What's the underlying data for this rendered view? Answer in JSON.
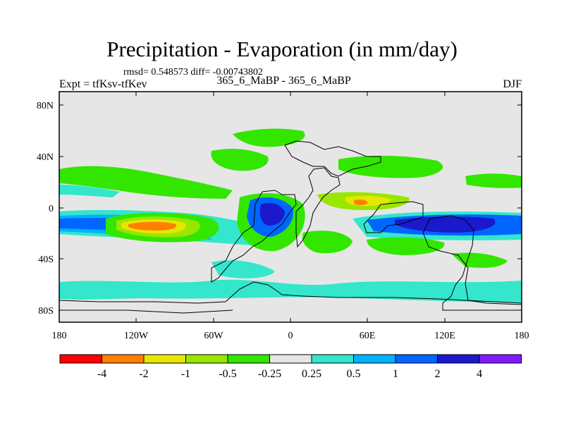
{
  "title": "Precipitation - Evaporation (in mm/day)",
  "stats": "rmsd= 0.548573 diff= -0.00743802",
  "expt": "Expt = tfKsv-tfKev",
  "case": "365_6_MaBP - 365_6_MaBP",
  "season": "DJF",
  "axes": {
    "x_ticks": [
      "180",
      "120W",
      "60W",
      "0",
      "60E",
      "120E",
      "180"
    ],
    "y_ticks": [
      "80N",
      "40N",
      "0",
      "40S",
      "80S"
    ]
  },
  "colorbar": {
    "colors": [
      "#ff0000",
      "#ff8000",
      "#e6e600",
      "#99e600",
      "#33e600",
      "#e6e6e6",
      "#33e6cc",
      "#00b2ff",
      "#0066ff",
      "#1a1acc",
      "#7f1aff"
    ],
    "labels": [
      "-4",
      "-2",
      "-1",
      "-0.5",
      "-0.25",
      "0.25",
      "0.5",
      "1",
      "2",
      "4"
    ]
  },
  "colors": {
    "background_field": "#e6e6e6",
    "coastline": "#000000"
  }
}
